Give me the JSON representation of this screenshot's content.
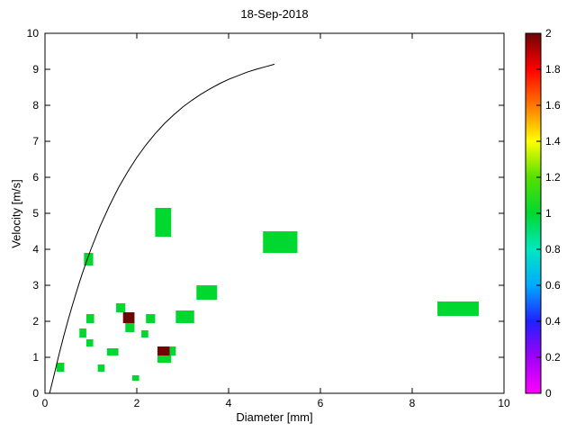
{
  "chart_data": {
    "type": "heatmap",
    "title": "18-Sep-2018",
    "xlabel": "Diameter [mm]",
    "ylabel": "Velocity [m/s]",
    "xlim": [
      0,
      10
    ],
    "ylim": [
      0,
      10
    ],
    "xticks": [
      "0",
      "2",
      "4",
      "6",
      "8",
      "10"
    ],
    "yticks": [
      "0",
      "1",
      "2",
      "3",
      "4",
      "5",
      "6",
      "7",
      "8",
      "9",
      "10"
    ],
    "grid": false,
    "plot_bg": "#ffffff",
    "axis_color": "#000000",
    "curve_color": "#000000",
    "colorbar": {
      "min": 0,
      "max": 2,
      "ticks": [
        "0",
        "0.2",
        "0.4",
        "0.6",
        "0.8",
        "1",
        "1.2",
        "1.4",
        "1.6",
        "1.8",
        "2"
      ],
      "stops": [
        {
          "v": 0.0,
          "c": "#ff00ff"
        },
        {
          "v": 0.2,
          "c": "#a000f8"
        },
        {
          "v": 0.4,
          "c": "#2020ff"
        },
        {
          "v": 0.6,
          "c": "#00aaff"
        },
        {
          "v": 0.8,
          "c": "#00e8c0"
        },
        {
          "v": 1.0,
          "c": "#00d830"
        },
        {
          "v": 1.2,
          "c": "#55e000"
        },
        {
          "v": 1.4,
          "c": "#ffff00"
        },
        {
          "v": 1.6,
          "c": "#ff7700"
        },
        {
          "v": 1.8,
          "c": "#ff0000"
        },
        {
          "v": 2.0,
          "c": "#6f0505"
        }
      ]
    },
    "cells": [
      {
        "d0": 0.25,
        "d1": 0.42,
        "v0": 0.6,
        "v1": 0.85,
        "value": 1
      },
      {
        "d0": 0.75,
        "d1": 0.9,
        "v0": 1.55,
        "v1": 1.8,
        "value": 1
      },
      {
        "d0": 0.9,
        "d1": 1.05,
        "v0": 1.3,
        "v1": 1.5,
        "value": 1
      },
      {
        "d0": 0.9,
        "d1": 1.07,
        "v0": 1.95,
        "v1": 2.2,
        "value": 1
      },
      {
        "d0": 0.85,
        "d1": 1.05,
        "v0": 3.55,
        "v1": 3.9,
        "value": 1
      },
      {
        "d0": 1.15,
        "d1": 1.3,
        "v0": 0.6,
        "v1": 0.8,
        "value": 1
      },
      {
        "d0": 1.35,
        "d1": 1.6,
        "v0": 1.05,
        "v1": 1.25,
        "value": 1
      },
      {
        "d0": 1.55,
        "d1": 1.75,
        "v0": 2.25,
        "v1": 2.5,
        "value": 1
      },
      {
        "d0": 1.7,
        "d1": 1.95,
        "v0": 1.95,
        "v1": 2.25,
        "value": 2
      },
      {
        "d0": 1.75,
        "d1": 1.95,
        "v0": 1.7,
        "v1": 1.95,
        "value": 1
      },
      {
        "d0": 1.9,
        "d1": 2.05,
        "v0": 0.35,
        "v1": 0.5,
        "value": 1
      },
      {
        "d0": 2.1,
        "d1": 2.25,
        "v0": 1.55,
        "v1": 1.75,
        "value": 1
      },
      {
        "d0": 2.2,
        "d1": 2.4,
        "v0": 1.95,
        "v1": 2.2,
        "value": 1
      },
      {
        "d0": 2.4,
        "d1": 2.75,
        "v0": 4.35,
        "v1": 5.15,
        "value": 1
      },
      {
        "d0": 2.45,
        "d1": 2.72,
        "v0": 1.05,
        "v1": 1.3,
        "value": 2
      },
      {
        "d0": 2.72,
        "d1": 2.85,
        "v0": 1.05,
        "v1": 1.3,
        "value": 1
      },
      {
        "d0": 2.45,
        "d1": 2.75,
        "v0": 0.85,
        "v1": 1.05,
        "value": 1
      },
      {
        "d0": 2.85,
        "d1": 3.25,
        "v0": 1.95,
        "v1": 2.3,
        "value": 1
      },
      {
        "d0": 3.3,
        "d1": 3.75,
        "v0": 2.6,
        "v1": 3.0,
        "value": 1
      },
      {
        "d0": 4.75,
        "d1": 5.5,
        "v0": 3.9,
        "v1": 4.5,
        "value": 1
      },
      {
        "d0": 8.55,
        "d1": 9.45,
        "v0": 2.15,
        "v1": 2.55,
        "value": 1
      }
    ],
    "curve": {
      "name": "terminal-velocity-curve",
      "points": [
        [
          0.1,
          0.0
        ],
        [
          0.2,
          0.52
        ],
        [
          0.3,
          1.05
        ],
        [
          0.4,
          1.55
        ],
        [
          0.5,
          2.02
        ],
        [
          0.6,
          2.46
        ],
        [
          0.7,
          2.88
        ],
        [
          0.8,
          3.28
        ],
        [
          0.9,
          3.65
        ],
        [
          1.0,
          4.0
        ],
        [
          1.2,
          4.64
        ],
        [
          1.4,
          5.2
        ],
        [
          1.6,
          5.71
        ],
        [
          1.8,
          6.15
        ],
        [
          2.0,
          6.55
        ],
        [
          2.2,
          6.9
        ],
        [
          2.4,
          7.21
        ],
        [
          2.6,
          7.49
        ],
        [
          2.8,
          7.73
        ],
        [
          3.0,
          7.95
        ],
        [
          3.2,
          8.14
        ],
        [
          3.4,
          8.31
        ],
        [
          3.6,
          8.46
        ],
        [
          3.8,
          8.6
        ],
        [
          4.0,
          8.72
        ],
        [
          4.2,
          8.82
        ],
        [
          4.4,
          8.92
        ],
        [
          4.6,
          9.0
        ],
        [
          4.8,
          9.07
        ],
        [
          5.0,
          9.14
        ]
      ]
    }
  }
}
